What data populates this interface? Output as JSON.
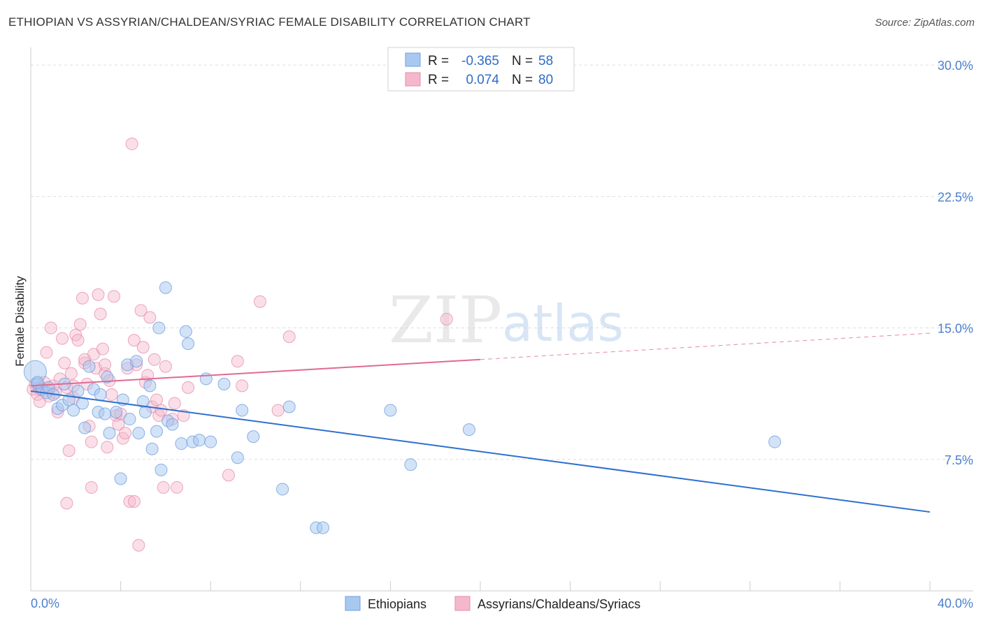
{
  "title": "ETHIOPIAN VS ASSYRIAN/CHALDEAN/SYRIAC FEMALE DISABILITY CORRELATION CHART",
  "source": "Source: ZipAtlas.com",
  "watermark": {
    "zip": "ZIP",
    "atlas": "atlas"
  },
  "legend": {
    "rows": [
      {
        "r_label": "R =",
        "r_value": "-0.365",
        "n_label": "N =",
        "n_value": "58"
      },
      {
        "r_label": "R =",
        "r_value": "0.074",
        "n_label": "N =",
        "n_value": "80"
      }
    ]
  },
  "colors": {
    "blue_fill": "#a8c8f0",
    "blue_stroke": "#6f9fe0",
    "blue_line": "#2f6fd0",
    "pink_fill": "#f5b8cb",
    "pink_stroke": "#e88aa8",
    "pink_line": "#e06a93",
    "grid": "#dddddd",
    "tick_text": "#4a7fcf"
  },
  "chart_data": {
    "type": "scatter",
    "title": "ETHIOPIAN VS ASSYRIAN/CHALDEAN/SYRIAC FEMALE DISABILITY CORRELATION CHART",
    "xlabel": "",
    "ylabel": "Female Disability",
    "xlim": [
      0,
      40
    ],
    "ylim": [
      0,
      31
    ],
    "x_ticks": [
      {
        "value": 0,
        "label": "0.0%"
      },
      {
        "value": 40,
        "label": "40.0%"
      }
    ],
    "y_ticks": [
      {
        "value": 7.5,
        "label": "7.5%"
      },
      {
        "value": 15,
        "label": "15.0%"
      },
      {
        "value": 22.5,
        "label": "22.5%"
      },
      {
        "value": 30,
        "label": "30.0%"
      }
    ],
    "grid": true,
    "legend_position": "top-center",
    "series": [
      {
        "name": "Ethiopians",
        "color": "#a8c8f0",
        "r": -0.365,
        "n": 58,
        "trend": {
          "x": [
            0,
            40
          ],
          "y": [
            11.4,
            4.5
          ],
          "dashed_from": null
        },
        "points": [
          [
            0.2,
            12.5
          ],
          [
            0.3,
            11.8
          ],
          [
            0.5,
            11.5
          ],
          [
            0.7,
            11.3
          ],
          [
            0.8,
            11.6
          ],
          [
            1.0,
            11.2
          ],
          [
            1.2,
            10.4
          ],
          [
            1.4,
            10.6
          ],
          [
            1.5,
            11.8
          ],
          [
            1.7,
            10.9
          ],
          [
            1.9,
            10.3
          ],
          [
            2.1,
            11.4
          ],
          [
            2.3,
            10.7
          ],
          [
            2.4,
            9.3
          ],
          [
            2.6,
            12.8
          ],
          [
            2.8,
            11.5
          ],
          [
            3.0,
            10.2
          ],
          [
            3.1,
            11.2
          ],
          [
            3.3,
            10.1
          ],
          [
            3.4,
            12.2
          ],
          [
            3.5,
            9.0
          ],
          [
            3.8,
            10.2
          ],
          [
            4.0,
            6.4
          ],
          [
            4.1,
            10.9
          ],
          [
            4.3,
            12.9
          ],
          [
            4.4,
            9.8
          ],
          [
            4.7,
            13.1
          ],
          [
            4.8,
            9.0
          ],
          [
            5.0,
            10.8
          ],
          [
            5.1,
            10.2
          ],
          [
            5.3,
            11.7
          ],
          [
            5.4,
            8.1
          ],
          [
            5.6,
            9.1
          ],
          [
            5.7,
            15.0
          ],
          [
            5.8,
            6.9
          ],
          [
            6.0,
            17.3
          ],
          [
            6.1,
            9.7
          ],
          [
            6.3,
            9.5
          ],
          [
            6.7,
            8.4
          ],
          [
            6.9,
            14.8
          ],
          [
            7.0,
            14.1
          ],
          [
            7.2,
            8.5
          ],
          [
            7.5,
            8.6
          ],
          [
            7.8,
            12.1
          ],
          [
            8.0,
            8.5
          ],
          [
            8.6,
            11.8
          ],
          [
            9.2,
            7.6
          ],
          [
            9.4,
            10.3
          ],
          [
            9.9,
            8.8
          ],
          [
            11.2,
            5.8
          ],
          [
            11.5,
            10.5
          ],
          [
            12.7,
            3.6
          ],
          [
            13.0,
            3.6
          ],
          [
            16.0,
            10.3
          ],
          [
            16.9,
            7.2
          ],
          [
            19.5,
            9.2
          ],
          [
            33.1,
            8.5
          ],
          [
            0.3,
            11.9
          ]
        ]
      },
      {
        "name": "Assyrians/Chaldeans/Syriacs",
        "color": "#f5b8cb",
        "r": 0.074,
        "n": 80,
        "trend": {
          "x": [
            0,
            40
          ],
          "y": [
            11.7,
            14.7
          ],
          "dashed_from": 20
        },
        "points": [
          [
            0.1,
            11.5
          ],
          [
            0.2,
            11.8
          ],
          [
            0.3,
            11.2
          ],
          [
            0.4,
            10.8
          ],
          [
            0.5,
            11.6
          ],
          [
            0.6,
            11.9
          ],
          [
            0.7,
            13.6
          ],
          [
            0.8,
            11.4
          ],
          [
            0.9,
            15.0
          ],
          [
            1.0,
            11.7
          ],
          [
            1.1,
            11.3
          ],
          [
            1.2,
            10.2
          ],
          [
            1.3,
            12.1
          ],
          [
            1.4,
            14.4
          ],
          [
            1.5,
            13.0
          ],
          [
            1.6,
            11.6
          ],
          [
            1.7,
            8.0
          ],
          [
            1.8,
            12.4
          ],
          [
            1.9,
            11.0
          ],
          [
            2.0,
            14.6
          ],
          [
            2.1,
            14.3
          ],
          [
            2.2,
            15.2
          ],
          [
            2.3,
            16.7
          ],
          [
            2.4,
            13.0
          ],
          [
            2.5,
            11.8
          ],
          [
            2.6,
            9.4
          ],
          [
            2.7,
            8.5
          ],
          [
            2.8,
            13.5
          ],
          [
            2.9,
            12.7
          ],
          [
            3.0,
            16.9
          ],
          [
            3.1,
            15.8
          ],
          [
            3.2,
            13.8
          ],
          [
            3.3,
            12.4
          ],
          [
            3.4,
            8.2
          ],
          [
            3.5,
            12.0
          ],
          [
            3.6,
            11.2
          ],
          [
            3.7,
            16.8
          ],
          [
            3.8,
            10.0
          ],
          [
            3.9,
            9.5
          ],
          [
            4.0,
            10.1
          ],
          [
            4.1,
            8.7
          ],
          [
            4.2,
            9.0
          ],
          [
            4.3,
            12.7
          ],
          [
            4.4,
            5.1
          ],
          [
            4.5,
            25.5
          ],
          [
            4.6,
            14.3
          ],
          [
            4.7,
            12.9
          ],
          [
            4.8,
            2.6
          ],
          [
            4.9,
            16.0
          ],
          [
            5.0,
            13.9
          ],
          [
            5.1,
            11.9
          ],
          [
            5.2,
            12.3
          ],
          [
            5.3,
            15.6
          ],
          [
            5.4,
            10.5
          ],
          [
            5.5,
            13.2
          ],
          [
            5.6,
            10.9
          ],
          [
            5.7,
            10.0
          ],
          [
            5.8,
            10.3
          ],
          [
            5.9,
            5.9
          ],
          [
            6.0,
            12.8
          ],
          [
            6.3,
            9.8
          ],
          [
            6.5,
            5.9
          ],
          [
            6.8,
            10.0
          ],
          [
            7.0,
            11.6
          ],
          [
            8.8,
            6.6
          ],
          [
            9.2,
            13.1
          ],
          [
            9.4,
            11.7
          ],
          [
            10.2,
            16.5
          ],
          [
            11.0,
            10.3
          ],
          [
            11.5,
            14.5
          ],
          [
            18.5,
            15.5
          ],
          [
            1.6,
            5.0
          ],
          [
            2.7,
            5.9
          ],
          [
            4.6,
            5.1
          ],
          [
            0.4,
            11.5
          ],
          [
            0.8,
            11.1
          ],
          [
            1.9,
            11.7
          ],
          [
            2.4,
            13.2
          ],
          [
            3.3,
            12.9
          ],
          [
            6.4,
            10.7
          ]
        ]
      }
    ]
  }
}
